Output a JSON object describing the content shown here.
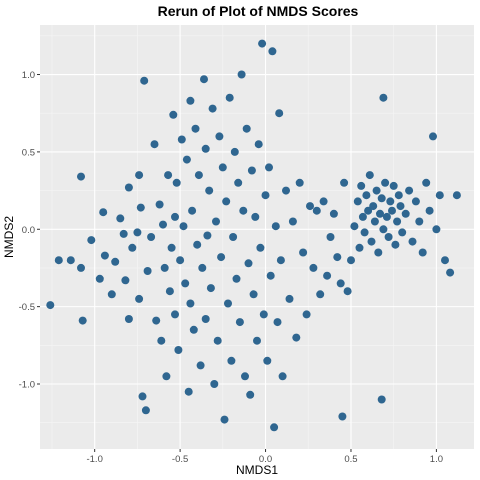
{
  "chart_data": {
    "type": "scatter",
    "title": "Rerun of Plot of NMDS Scores",
    "xlabel": "NMDS1",
    "ylabel": "NMDS2",
    "xlim": [
      -1.32,
      1.22
    ],
    "ylim": [
      -1.42,
      1.32
    ],
    "x_ticks": [
      -1.0,
      -0.5,
      0.0,
      0.5,
      1.0
    ],
    "x_tick_labels": [
      "-1.0",
      "-0.5",
      "0.0",
      "0.5",
      "1.0"
    ],
    "y_ticks": [
      -1.0,
      -0.5,
      0.0,
      0.5,
      1.0
    ],
    "y_tick_labels": [
      "-1.0",
      "-0.5",
      "0.0",
      "0.5",
      "1.0"
    ],
    "grid": true,
    "point_color": "#2f6690",
    "panel_background": "#ebebeb",
    "grid_color": "#ffffff",
    "series": [
      {
        "points": [
          [
            -1.26,
            -0.49
          ],
          [
            -1.21,
            -0.2
          ],
          [
            -1.14,
            -0.2
          ],
          [
            -1.08,
            0.34
          ],
          [
            -1.08,
            -0.25
          ],
          [
            -1.07,
            -0.59
          ],
          [
            -1.02,
            -0.07
          ],
          [
            -0.97,
            -0.32
          ],
          [
            -0.95,
            0.11
          ],
          [
            -0.94,
            -0.17
          ],
          [
            -0.9,
            -0.42
          ],
          [
            -0.88,
            -0.21
          ],
          [
            -0.85,
            0.07
          ],
          [
            -0.83,
            -0.03
          ],
          [
            -0.82,
            -0.33
          ],
          [
            -0.8,
            -0.58
          ],
          [
            -0.8,
            0.27
          ],
          [
            -0.78,
            -0.12
          ],
          [
            -0.75,
            -0.02
          ],
          [
            -0.74,
            0.35
          ],
          [
            -0.74,
            -0.45
          ],
          [
            -0.73,
            0.14
          ],
          [
            -0.72,
            -1.08
          ],
          [
            -0.71,
            0.96
          ],
          [
            -0.7,
            -1.17
          ],
          [
            -0.69,
            -0.27
          ],
          [
            -0.67,
            -0.05
          ],
          [
            -0.65,
            0.55
          ],
          [
            -0.64,
            -0.59
          ],
          [
            -0.62,
            0.16
          ],
          [
            -0.61,
            -0.72
          ],
          [
            -0.6,
            0.03
          ],
          [
            -0.59,
            -0.25
          ],
          [
            -0.58,
            -0.95
          ],
          [
            -0.57,
            0.35
          ],
          [
            -0.56,
            -0.4
          ],
          [
            -0.55,
            -0.12
          ],
          [
            -0.54,
            0.74
          ],
          [
            -0.53,
            0.08
          ],
          [
            -0.53,
            -0.55
          ],
          [
            -0.52,
            0.3
          ],
          [
            -0.51,
            -0.78
          ],
          [
            -0.5,
            -0.2
          ],
          [
            -0.49,
            0.58
          ],
          [
            -0.48,
            0.02
          ],
          [
            -0.47,
            -0.35
          ],
          [
            -0.46,
            0.45
          ],
          [
            -0.45,
            -1.05
          ],
          [
            -0.44,
            0.83
          ],
          [
            -0.44,
            -0.48
          ],
          [
            -0.43,
            0.12
          ],
          [
            -0.42,
            -0.65
          ],
          [
            -0.41,
            0.65
          ],
          [
            -0.4,
            -0.1
          ],
          [
            -0.39,
            0.35
          ],
          [
            -0.38,
            -0.88
          ],
          [
            -0.37,
            -0.25
          ],
          [
            -0.36,
            0.97
          ],
          [
            -0.35,
            0.52
          ],
          [
            -0.35,
            -0.58
          ],
          [
            -0.34,
            -0.04
          ],
          [
            -0.33,
            0.25
          ],
          [
            -0.32,
            -0.38
          ],
          [
            -0.31,
            0.78
          ],
          [
            -0.3,
            -1.0
          ],
          [
            -0.29,
            0.05
          ],
          [
            -0.28,
            -0.72
          ],
          [
            -0.27,
            0.6
          ],
          [
            -0.26,
            -0.18
          ],
          [
            -0.25,
            0.4
          ],
          [
            -0.24,
            -1.23
          ],
          [
            -0.23,
            0.18
          ],
          [
            -0.22,
            -0.48
          ],
          [
            -0.21,
            0.85
          ],
          [
            -0.2,
            -0.85
          ],
          [
            -0.19,
            -0.05
          ],
          [
            -0.18,
            0.5
          ],
          [
            -0.17,
            -0.32
          ],
          [
            -0.16,
            0.3
          ],
          [
            -0.15,
            -0.6
          ],
          [
            -0.14,
            1.0
          ],
          [
            -0.13,
            0.12
          ],
          [
            -0.12,
            -0.95
          ],
          [
            -0.11,
            0.65
          ],
          [
            -0.1,
            -0.22
          ],
          [
            -0.09,
            -1.07
          ],
          [
            -0.08,
            0.38
          ],
          [
            -0.07,
            -0.42
          ],
          [
            -0.06,
            0.08
          ],
          [
            -0.05,
            -0.72
          ],
          [
            -0.04,
            0.55
          ],
          [
            -0.03,
            -0.12
          ],
          [
            -0.02,
            1.2
          ],
          [
            -0.01,
            -0.55
          ],
          [
            0.0,
            0.22
          ],
          [
            0.01,
            -0.85
          ],
          [
            0.02,
            0.4
          ],
          [
            0.03,
            -0.3
          ],
          [
            0.04,
            1.15
          ],
          [
            0.05,
            -1.28
          ],
          [
            0.06,
            0.02
          ],
          [
            0.07,
            -0.6
          ],
          [
            0.08,
            0.75
          ],
          [
            0.09,
            -0.2
          ],
          [
            0.1,
            -0.95
          ],
          [
            0.12,
            0.25
          ],
          [
            0.14,
            -0.45
          ],
          [
            0.16,
            0.05
          ],
          [
            0.18,
            -0.7
          ],
          [
            0.2,
            0.3
          ],
          [
            0.22,
            -0.15
          ],
          [
            0.24,
            -0.55
          ],
          [
            0.26,
            0.15
          ],
          [
            0.28,
            -0.25
          ],
          [
            0.3,
            0.12
          ],
          [
            0.32,
            -0.42
          ],
          [
            0.34,
            0.18
          ],
          [
            0.36,
            -0.3
          ],
          [
            0.38,
            -0.05
          ],
          [
            0.4,
            0.1
          ],
          [
            0.42,
            -0.18
          ],
          [
            0.44,
            -0.35
          ],
          [
            0.45,
            -1.21
          ],
          [
            0.46,
            0.3
          ],
          [
            0.48,
            -0.4
          ],
          [
            0.5,
            -0.2
          ],
          [
            0.52,
            0.02
          ],
          [
            0.54,
            0.18
          ],
          [
            0.55,
            -0.12
          ],
          [
            0.56,
            0.28
          ],
          [
            0.57,
            0.08
          ],
          [
            0.58,
            -0.02
          ],
          [
            0.59,
            0.22
          ],
          [
            0.6,
            0.12
          ],
          [
            0.61,
            0.35
          ],
          [
            0.62,
            -0.08
          ],
          [
            0.63,
            0.15
          ],
          [
            0.64,
            0.05
          ],
          [
            0.65,
            0.25
          ],
          [
            0.66,
            -0.15
          ],
          [
            0.67,
            0.1
          ],
          [
            0.68,
            0.2
          ],
          [
            0.69,
            0.0
          ],
          [
            0.7,
            0.3
          ],
          [
            0.71,
            0.08
          ],
          [
            0.72,
            -0.05
          ],
          [
            0.73,
            0.18
          ],
          [
            0.74,
            0.12
          ],
          [
            0.75,
            0.28
          ],
          [
            0.76,
            -0.1
          ],
          [
            0.77,
            0.05
          ],
          [
            0.78,
            0.22
          ],
          [
            0.79,
            0.15
          ],
          [
            0.8,
            -0.02
          ],
          [
            0.82,
            0.1
          ],
          [
            0.84,
            0.25
          ],
          [
            0.86,
            -0.08
          ],
          [
            0.88,
            0.18
          ],
          [
            0.9,
            0.05
          ],
          [
            0.92,
            -0.15
          ],
          [
            0.94,
            0.3
          ],
          [
            0.96,
            0.12
          ],
          [
            0.98,
            0.6
          ],
          [
            1.0,
            0.0
          ],
          [
            1.02,
            0.22
          ],
          [
            1.05,
            -0.2
          ],
          [
            1.08,
            -0.28
          ],
          [
            1.12,
            0.22
          ],
          [
            0.69,
            0.85
          ],
          [
            0.68,
            -1.1
          ]
        ]
      }
    ]
  }
}
